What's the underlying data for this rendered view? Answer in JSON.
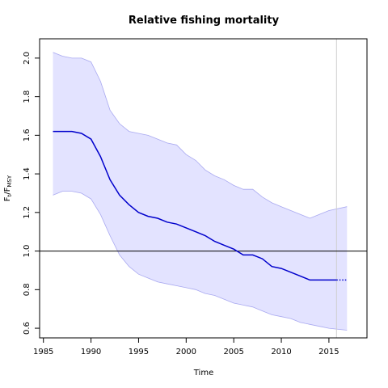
{
  "chart_data": {
    "type": "line",
    "title": "Relative fishing mortality",
    "xlabel": "Time",
    "ylabel": {
      "main": "F",
      "sub": "t",
      "sep": "/F",
      "sub2": "MSY"
    },
    "xlim": [
      1984.6,
      2019.0
    ],
    "ylim": [
      0.55,
      2.1
    ],
    "x_ticks": [
      1985,
      1990,
      1995,
      2000,
      2005,
      2010,
      2015
    ],
    "y_ticks": [
      0.6,
      0.8,
      1.0,
      1.2,
      1.4,
      1.6,
      1.8,
      2.0
    ],
    "y_tick_labels": [
      "0.6",
      "0.8",
      "1.0",
      "1.2",
      "1.4",
      "1.6",
      "1.8",
      "2.0"
    ],
    "reference_line_y": 1.0,
    "vertical_marker_x": 2015.8,
    "colors": {
      "line": "#0000cc",
      "band_fill": "#e3e3ff",
      "band_edge": "#a9a9f0",
      "marker": "#cfcfcf",
      "reference": "#000000"
    },
    "series": [
      {
        "role": "estimate",
        "x": [
          1986,
          1987,
          1988,
          1989,
          1990,
          1991,
          1992,
          1993,
          1994,
          1995,
          1996,
          1997,
          1998,
          1999,
          2000,
          2001,
          2002,
          2003,
          2004,
          2005,
          2006,
          2007,
          2008,
          2009,
          2010,
          2011,
          2012,
          2013,
          2014,
          2015,
          2015.8
        ],
        "y": [
          1.62,
          1.62,
          1.62,
          1.61,
          1.58,
          1.49,
          1.37,
          1.29,
          1.24,
          1.2,
          1.18,
          1.17,
          1.15,
          1.14,
          1.12,
          1.1,
          1.08,
          1.05,
          1.03,
          1.01,
          0.98,
          0.98,
          0.96,
          0.92,
          0.91,
          0.89,
          0.87,
          0.85,
          0.85,
          0.85,
          0.85
        ]
      },
      {
        "role": "prediction",
        "style": "dotted",
        "x": [
          2015.8,
          2016.9
        ],
        "y": [
          0.85,
          0.85
        ]
      },
      {
        "role": "upper_bound",
        "x": [
          1986,
          1987,
          1988,
          1989,
          1990,
          1991,
          1992,
          1993,
          1994,
          1995,
          1996,
          1997,
          1998,
          1999,
          2000,
          2001,
          2002,
          2003,
          2004,
          2005,
          2006,
          2007,
          2008,
          2009,
          2010,
          2011,
          2012,
          2013,
          2014,
          2015,
          2016.9
        ],
        "y": [
          2.03,
          2.01,
          2.0,
          2.0,
          1.98,
          1.88,
          1.73,
          1.66,
          1.62,
          1.61,
          1.6,
          1.58,
          1.56,
          1.55,
          1.5,
          1.47,
          1.42,
          1.39,
          1.37,
          1.34,
          1.32,
          1.32,
          1.28,
          1.25,
          1.23,
          1.21,
          1.19,
          1.17,
          1.19,
          1.21,
          1.23
        ]
      },
      {
        "role": "lower_bound",
        "x": [
          1986,
          1987,
          1988,
          1989,
          1990,
          1991,
          1992,
          1993,
          1994,
          1995,
          1996,
          1997,
          1998,
          1999,
          2000,
          2001,
          2002,
          2003,
          2004,
          2005,
          2006,
          2007,
          2008,
          2009,
          2010,
          2011,
          2012,
          2013,
          2014,
          2015,
          2016.9
        ],
        "y": [
          1.29,
          1.31,
          1.31,
          1.3,
          1.27,
          1.19,
          1.08,
          0.98,
          0.92,
          0.88,
          0.86,
          0.84,
          0.83,
          0.82,
          0.81,
          0.8,
          0.78,
          0.77,
          0.75,
          0.73,
          0.72,
          0.71,
          0.69,
          0.67,
          0.66,
          0.65,
          0.63,
          0.62,
          0.61,
          0.6,
          0.59
        ]
      }
    ]
  }
}
